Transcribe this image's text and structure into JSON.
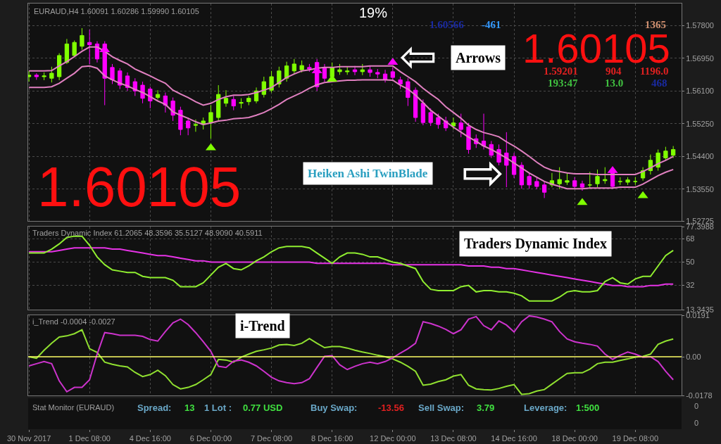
{
  "chart_data": [
    {
      "type": "candlestick",
      "categories": [
        null,
        null,
        null,
        null,
        null,
        null,
        null,
        null,
        null,
        null,
        null,
        null,
        null,
        null,
        null,
        null,
        null,
        null,
        null,
        null,
        null,
        null,
        null,
        null,
        null,
        null,
        null,
        null,
        null,
        null,
        null,
        null,
        null,
        null,
        null,
        null,
        null,
        null,
        null,
        null,
        null,
        null,
        null,
        null,
        null,
        null,
        null,
        null,
        null,
        null,
        null,
        null,
        null,
        null,
        null,
        null,
        null,
        null,
        null,
        null,
        null,
        null,
        null,
        null,
        null,
        null,
        null,
        null,
        null,
        null,
        null,
        null,
        null,
        null,
        null,
        null,
        null,
        null,
        null,
        null,
        null,
        null,
        null,
        null,
        null,
        null
      ],
      "ohlc": [
        [
          1.5647,
          1.5662,
          1.5634,
          1.5651
        ],
        [
          1.5651,
          1.5656,
          1.5639,
          1.5647
        ],
        [
          1.5647,
          1.5658,
          1.5638,
          1.5649
        ],
        [
          1.5643,
          1.5673,
          1.5632,
          1.5656
        ],
        [
          1.5647,
          1.5708,
          1.5638,
          1.5702
        ],
        [
          1.5684,
          1.5745,
          1.568,
          1.5732
        ],
        [
          1.5702,
          1.5741,
          1.5699,
          1.5736
        ],
        [
          1.5726,
          1.5773,
          1.5717,
          1.5754
        ],
        [
          1.5736,
          1.5769,
          1.568,
          1.573
        ],
        [
          1.5732,
          1.5739,
          1.5684,
          1.5693
        ],
        [
          1.5732,
          1.5739,
          1.5573,
          1.5643
        ],
        [
          1.5671,
          1.568,
          1.5628,
          1.5639
        ],
        [
          1.5662,
          1.5669,
          1.5615,
          1.5625
        ],
        [
          1.5649,
          1.5658,
          1.561,
          1.5619
        ],
        [
          1.5634,
          1.5643,
          1.5597,
          1.561
        ],
        [
          1.5625,
          1.5634,
          1.5578,
          1.5591
        ],
        [
          1.5615,
          1.5621,
          1.5565,
          1.5584
        ],
        [
          1.5593,
          1.5612,
          1.5588,
          1.5601
        ],
        [
          1.5597,
          1.5606,
          1.5554,
          1.5573
        ],
        [
          1.5584,
          1.5593,
          1.5532,
          1.5547
        ],
        [
          1.556,
          1.5569,
          1.5495,
          1.551
        ],
        [
          1.5532,
          1.5541,
          1.5495,
          1.5514
        ],
        [
          1.5523,
          1.5536,
          1.5504,
          1.5521
        ],
        [
          1.5523,
          1.5541,
          1.551,
          1.5532
        ],
        [
          1.5528,
          1.5573,
          1.5486,
          1.5554
        ],
        [
          1.5541,
          1.5625,
          1.5532,
          1.5601
        ],
        [
          1.5578,
          1.5612,
          1.5569,
          1.5591
        ],
        [
          1.5588,
          1.5597,
          1.556,
          1.5571
        ],
        [
          1.5578,
          1.5591,
          1.5565,
          1.558
        ],
        [
          1.5582,
          1.5597,
          1.5573,
          1.5591
        ],
        [
          1.5584,
          1.5619,
          1.5578,
          1.561
        ],
        [
          1.5601,
          1.5647,
          1.5593,
          1.5634
        ],
        [
          1.5612,
          1.5662,
          1.5606,
          1.5647
        ],
        [
          1.5628,
          1.5673,
          1.5619,
          1.5662
        ],
        [
          1.5643,
          1.5686,
          1.5634,
          1.5675
        ],
        [
          1.5662,
          1.5693,
          1.5654,
          1.568
        ],
        [
          1.5665,
          1.5689,
          1.5658,
          1.5676
        ],
        [
          1.5671,
          1.568,
          1.566,
          1.5667
        ],
        [
          1.5684,
          1.5693,
          1.561,
          1.5621
        ],
        [
          1.5671,
          1.568,
          1.5634,
          1.5643
        ],
        [
          1.5647,
          1.5684,
          1.564,
          1.5671
        ],
        [
          1.566,
          1.568,
          1.5652,
          1.5665
        ],
        [
          1.5662,
          1.5673,
          1.5652,
          1.566
        ],
        [
          1.5665,
          1.5675,
          1.5651,
          1.566
        ],
        [
          1.566,
          1.568,
          1.5651,
          1.5665
        ],
        [
          1.5665,
          1.5676,
          1.5647,
          1.5658
        ],
        [
          1.5658,
          1.5667,
          1.5643,
          1.5654
        ],
        [
          1.5654,
          1.5665,
          1.5632,
          1.5639
        ],
        [
          1.566,
          1.5671,
          1.5636,
          1.5645
        ],
        [
          1.5639,
          1.5647,
          1.5615,
          1.5628
        ],
        [
          1.5634,
          1.5643,
          1.5571,
          1.5593
        ],
        [
          1.5612,
          1.5619,
          1.553,
          1.5541
        ],
        [
          1.5578,
          1.5588,
          1.5521,
          1.5528
        ],
        [
          1.5554,
          1.5565,
          1.5519,
          1.5528
        ],
        [
          1.5541,
          1.5551,
          1.5512,
          1.5523
        ],
        [
          1.5532,
          1.5543,
          1.5506,
          1.5514
        ],
        [
          1.5519,
          1.5541,
          1.551,
          1.5527
        ],
        [
          1.5527,
          1.5551,
          1.549,
          1.551
        ],
        [
          1.5517,
          1.5527,
          1.5447,
          1.5458
        ],
        [
          1.5486,
          1.5497,
          1.5462,
          1.5473
        ],
        [
          1.548,
          1.5551,
          1.5458,
          1.5467
        ],
        [
          1.5471,
          1.548,
          1.5436,
          1.5443
        ],
        [
          1.5458,
          1.5471,
          1.5417,
          1.5425
        ],
        [
          1.5449,
          1.5503,
          1.536,
          1.5417
        ],
        [
          1.544,
          1.5449,
          1.5384,
          1.5393
        ],
        [
          1.5417,
          1.5425,
          1.5356,
          1.5366
        ],
        [
          1.5388,
          1.5397,
          1.5356,
          1.5366
        ],
        [
          1.5375,
          1.5384,
          1.5355,
          1.5362
        ],
        [
          1.5366,
          1.5375,
          1.5332,
          1.5347
        ],
        [
          1.5366,
          1.5397,
          1.536,
          1.5377
        ],
        [
          1.5369,
          1.5412,
          1.5355,
          1.538
        ],
        [
          1.5373,
          1.5397,
          1.5366,
          1.5377
        ],
        [
          1.5377,
          1.5386,
          1.5355,
          1.5362
        ],
        [
          1.5369,
          1.5377,
          1.5351,
          1.536
        ],
        [
          1.5366,
          1.54,
          1.5356,
          1.5366
        ],
        [
          1.5369,
          1.5406,
          1.536,
          1.5388
        ],
        [
          1.5377,
          1.5412,
          1.5369,
          1.538
        ],
        [
          1.5403,
          1.5412,
          1.5356,
          1.5362
        ],
        [
          1.5375,
          1.5386,
          1.5366,
          1.5375
        ],
        [
          1.5373,
          1.5386,
          1.5366,
          1.5379
        ],
        [
          1.5375,
          1.5386,
          1.5366,
          1.5375
        ],
        [
          1.5384,
          1.5412,
          1.5377,
          1.5403
        ],
        [
          1.5403,
          1.5445,
          1.5393,
          1.543
        ],
        [
          1.5412,
          1.5458,
          1.5403,
          1.5449
        ],
        [
          1.5436,
          1.5465,
          1.543,
          1.5454
        ],
        [
          1.5443,
          1.5467,
          1.5436,
          1.5458
        ]
      ],
      "colors": [
        "#80ff00",
        "#ff00ff",
        "#80ff00",
        "#80ff00",
        "#80ff00",
        "#80ff00",
        "#80ff00",
        "#80ff00",
        "#ff00ff",
        "#ff00ff",
        "#ff00ff",
        "#ff00ff",
        "#ff00ff",
        "#ff00ff",
        "#ff00ff",
        "#ff00ff",
        "#ff00ff",
        "#80ff00",
        "#ff00ff",
        "#ff00ff",
        "#ff00ff",
        "#ff00ff",
        "#80ff00",
        "#80ff00",
        "#80ff00",
        "#80ff00",
        "#80ff00",
        "#ff00ff",
        "#80ff00",
        "#80ff00",
        "#80ff00",
        "#80ff00",
        "#80ff00",
        "#80ff00",
        "#80ff00",
        "#80ff00",
        "#80ff00",
        "#ff00ff",
        "#ff00ff",
        "#ff00ff",
        "#80ff00",
        "#80ff00",
        "#80ff00",
        "#ff00ff",
        "#80ff00",
        "#ff00ff",
        "#ff00ff",
        "#ff00ff",
        "#ff00ff",
        "#ff00ff",
        "#ff00ff",
        "#ff00ff",
        "#ff00ff",
        "#ff00ff",
        "#ff00ff",
        "#ff00ff",
        "#80ff00",
        "#ff00ff",
        "#ff00ff",
        "#ff00ff",
        "#ff00ff",
        "#ff00ff",
        "#ff00ff",
        "#ff00ff",
        "#ff00ff",
        "#ff00ff",
        "#ff00ff",
        "#ff00ff",
        "#ff00ff",
        "#80ff00",
        "#80ff00",
        "#80ff00",
        "#ff00ff",
        "#ff00ff",
        "#80ff00",
        "#80ff00",
        "#80ff00",
        "#ff00ff",
        "#80ff00",
        "#80ff00",
        "#80ff00",
        "#80ff00",
        "#80ff00",
        "#80ff00",
        "#80ff00",
        "#80ff00"
      ],
      "series": [
        {
          "type": "line",
          "color": "#e080c0",
          "values": [
            1.5662,
            1.5662,
            1.5662,
            1.5663,
            1.5675,
            1.5686,
            1.5699,
            1.5713,
            1.5724,
            1.5724,
            1.5713,
            1.5699,
            1.5689,
            1.568,
            1.5667,
            1.5658,
            1.5649,
            1.5639,
            1.563,
            1.5612,
            1.5602,
            1.5593,
            1.5582,
            1.5573,
            1.5578,
            1.5588,
            1.5595,
            1.5599,
            1.5599,
            1.5601,
            1.5606,
            1.5612,
            1.5619,
            1.5632,
            1.5645,
            1.5654,
            1.5662,
            1.5665,
            1.5669,
            1.5671,
            1.5671,
            1.5673,
            1.5673,
            1.5673,
            1.5673,
            1.5675,
            1.5675,
            1.5675,
            1.5675,
            1.566,
            1.5647,
            1.5634,
            1.5617,
            1.5602,
            1.5588,
            1.5569,
            1.5554,
            1.5539,
            1.5521,
            1.551,
            1.5502,
            1.5497,
            1.5491,
            1.5478,
            1.5467,
            1.5454,
            1.544,
            1.5425,
            1.5412,
            1.5404,
            1.5401,
            1.5397,
            1.5395,
            1.5395,
            1.5395,
            1.5393,
            1.5393,
            1.5393,
            1.5393,
            1.5393,
            1.5393,
            1.5401,
            1.541,
            1.5421,
            1.543,
            1.544
          ]
        },
        {
          "type": "line",
          "color": "#e080c0",
          "values": [
            1.5619,
            1.5619,
            1.5619,
            1.5621,
            1.563,
            1.5643,
            1.5656,
            1.5673,
            1.5675,
            1.5669,
            1.5649,
            1.5639,
            1.563,
            1.5623,
            1.5614,
            1.5606,
            1.5595,
            1.5584,
            1.5575,
            1.5556,
            1.5547,
            1.5539,
            1.553,
            1.5523,
            1.5527,
            1.5532,
            1.5534,
            1.5538,
            1.5539,
            1.5541,
            1.5547,
            1.5554,
            1.5564,
            1.5575,
            1.5588,
            1.5597,
            1.5606,
            1.5617,
            1.5626,
            1.5632,
            1.5634,
            1.5636,
            1.5638,
            1.5638,
            1.5639,
            1.5639,
            1.5639,
            1.5639,
            1.5638,
            1.5625,
            1.5615,
            1.5599,
            1.558,
            1.556,
            1.5545,
            1.553,
            1.5516,
            1.5503,
            1.549,
            1.5479,
            1.5467,
            1.5458,
            1.5447,
            1.5436,
            1.5423,
            1.541,
            1.5397,
            1.5386,
            1.5375,
            1.5368,
            1.5362,
            1.5356,
            1.5356,
            1.5356,
            1.5358,
            1.5358,
            1.5358,
            1.5358,
            1.536,
            1.536,
            1.536,
            1.5368,
            1.5379,
            1.539,
            1.5399,
            1.5406
          ]
        },
        {
          "type": "scatter",
          "marker": "triangle",
          "color": "#80ff00",
          "values": [
            null,
            null,
            null,
            null,
            null,
            null,
            null,
            null,
            null,
            null,
            null,
            null,
            null,
            null,
            null,
            null,
            null,
            null,
            null,
            null,
            null,
            null,
            null,
            null,
            1.5462,
            null,
            null,
            null,
            null,
            null,
            null,
            null,
            null,
            null,
            null,
            null,
            null,
            null,
            null,
            null,
            1.564,
            null,
            null,
            null,
            null,
            null,
            null,
            null,
            null,
            null,
            null,
            null,
            null,
            null,
            null,
            null,
            null,
            null,
            null,
            null,
            null,
            null,
            null,
            null,
            null,
            null,
            null,
            null,
            null,
            null,
            null,
            null,
            null,
            1.532,
            null,
            null,
            null,
            null,
            null,
            null,
            null,
            1.5338,
            null,
            null,
            null,
            null
          ]
        },
        {
          "type": "scatter",
          "marker": "triangle",
          "color": "#ff00ff",
          "values": [
            null,
            null,
            null,
            null,
            null,
            null,
            null,
            null,
            null,
            null,
            1.5717,
            null,
            null,
            null,
            null,
            null,
            null,
            null,
            null,
            null,
            null,
            null,
            null,
            null,
            null,
            null,
            null,
            null,
            null,
            null,
            null,
            null,
            null,
            null,
            null,
            null,
            null,
            null,
            1.5662,
            null,
            null,
            null,
            null,
            null,
            null,
            null,
            null,
            null,
            1.5684,
            null,
            null,
            null,
            null,
            null,
            null,
            null,
            null,
            null,
            null,
            null,
            null,
            null,
            null,
            null,
            null,
            null,
            null,
            null,
            null,
            null,
            null,
            null,
            null,
            null,
            null,
            null,
            null,
            1.5403,
            null,
            null,
            null,
            null,
            null,
            null,
            null,
            null
          ]
        }
      ],
      "ylim": [
        1.52725,
        1.5837
      ],
      "yticks": [
        {
          "value": 1.578,
          "label": "1.57800"
        },
        {
          "value": 1.5695,
          "label": "1.56950"
        },
        {
          "value": 1.561,
          "label": "1.56100"
        },
        {
          "value": 1.5525,
          "label": "1.55250"
        },
        {
          "value": 1.544,
          "label": "1.54400"
        },
        {
          "value": 1.5355,
          "label": "1.53550"
        },
        {
          "value": 1.52725,
          "label": "1.52725"
        }
      ],
      "grid": true,
      "tick_labels": "y",
      "annotations": [
        "EURAUD,H4 1.60091 1.60286 1.59990 1.60105",
        "19%",
        "1.60566",
        "-461",
        "1365",
        "1.60105",
        "1.59201",
        "904",
        "1196.0",
        "193:47",
        "13.0",
        "468",
        "Arrows",
        "Heiken Ashi TwinBlade",
        "1.60105",
        "⇦",
        "⇨"
      ]
    },
    {
      "type": "line",
      "categories": [
        null,
        null,
        null,
        null,
        null,
        null,
        null,
        null,
        null,
        null,
        null,
        null,
        null,
        null,
        null,
        null,
        null,
        null,
        null,
        null,
        null,
        null,
        null,
        null,
        null,
        null,
        null,
        null,
        null,
        null,
        null,
        null,
        null,
        null,
        null,
        null,
        null,
        null,
        null,
        null,
        null,
        null,
        null,
        null,
        null,
        null,
        null,
        null,
        null,
        null,
        null,
        null,
        null,
        null,
        null,
        null,
        null,
        null,
        null,
        null,
        null,
        null,
        null,
        null,
        null,
        null,
        null,
        null,
        null,
        null,
        null,
        null,
        null,
        null,
        null,
        null,
        null,
        null,
        null,
        null,
        null,
        null,
        null,
        null,
        null,
        null
      ],
      "series": [
        {
          "color": "#e633e6",
          "values": [
            58,
            58,
            58,
            58,
            59,
            60,
            61,
            61,
            61,
            61,
            61,
            60,
            60,
            59,
            58,
            57,
            56,
            55,
            55,
            54,
            53,
            52,
            51,
            51,
            50,
            50,
            50,
            50,
            50,
            50,
            50,
            50,
            50,
            50,
            50,
            50,
            50,
            50,
            49,
            49,
            49,
            49,
            49,
            49,
            49,
            49,
            49,
            49,
            48,
            48,
            48,
            48,
            48,
            48,
            48,
            48,
            48,
            48,
            47,
            47,
            47,
            46,
            46,
            45,
            45,
            44,
            43,
            42,
            41,
            40,
            39,
            38,
            37,
            36,
            35,
            34,
            33,
            32,
            32,
            31,
            31,
            31,
            32,
            32,
            33,
            33
          ]
        },
        {
          "color": "#90ee30",
          "values": [
            57,
            57,
            57,
            60,
            64,
            69,
            70,
            70,
            63,
            54,
            48,
            44,
            43,
            42,
            42,
            39,
            38,
            38,
            38,
            36,
            31,
            31,
            31,
            34,
            40,
            46,
            49,
            45,
            44,
            47,
            51,
            54,
            58,
            61,
            62,
            62,
            62,
            61,
            57,
            53,
            49,
            54,
            57,
            57,
            56,
            54,
            54,
            52,
            50,
            49,
            47,
            45,
            35,
            29,
            28,
            28,
            28,
            31,
            32,
            27,
            28,
            28,
            27,
            27,
            26,
            24,
            20,
            20,
            20,
            20,
            23,
            27,
            28,
            27,
            27,
            28,
            35,
            38,
            34,
            33,
            37,
            39,
            39,
            47,
            55,
            59
          ]
        }
      ],
      "ylim": [
        13.3435,
        77.3988
      ],
      "yticks": [
        77.3988,
        68,
        50,
        32,
        13.3435
      ],
      "grid": true,
      "tick_labels": "y",
      "annotations": [
        "Traders Dynamic Index 61.2065 48.3596 35.5127 48.9090 40.5911",
        "Traders Dynamic Index"
      ]
    },
    {
      "type": "line",
      "categories": [
        null,
        null,
        null,
        null,
        null,
        null,
        null,
        null,
        null,
        null,
        null,
        null,
        null,
        null,
        null,
        null,
        null,
        null,
        null,
        null,
        null,
        null,
        null,
        null,
        null,
        null,
        null,
        null,
        null,
        null,
        null,
        null,
        null,
        null,
        null,
        null,
        null,
        null,
        null,
        null,
        null,
        null,
        null,
        null,
        null,
        null,
        null,
        null,
        null,
        null,
        null,
        null,
        null,
        null,
        null,
        null,
        null,
        null,
        null,
        null,
        null,
        null,
        null,
        null,
        null,
        null,
        null,
        null,
        null,
        null,
        null,
        null,
        null,
        null,
        null,
        null,
        null,
        null,
        null,
        null,
        null,
        null,
        null,
        null,
        null,
        null
      ],
      "series": [
        {
          "color": "#90e030",
          "values": [
            0.0,
            -0.0007,
            0.003,
            0.0062,
            0.0091,
            0.0096,
            0.0106,
            0.0124,
            0.0037,
            0.002,
            -0.0025,
            -0.0035,
            -0.0042,
            -0.0047,
            -0.0072,
            -0.0091,
            -0.0082,
            -0.0062,
            -0.0087,
            -0.0128,
            -0.0148,
            -0.0141,
            -0.0128,
            -0.0106,
            -0.0082,
            -0.0012,
            -0.0015,
            -0.0025,
            -0.0002,
            0.0012,
            0.0025,
            0.0032,
            0.004,
            0.0054,
            0.0057,
            0.0052,
            0.0062,
            0.0084,
            0.0062,
            0.0042,
            0.0047,
            0.0047,
            0.004,
            0.003,
            0.0022,
            0.0015,
            0.0007,
            0.0,
            -0.001,
            -0.0025,
            -0.0044,
            -0.0067,
            -0.0131,
            -0.0126,
            -0.0114,
            -0.0106,
            -0.0089,
            -0.0082,
            -0.0131,
            -0.0148,
            -0.0151,
            -0.0153,
            -0.0146,
            -0.0136,
            -0.0128,
            -0.0173,
            -0.017,
            -0.0158,
            -0.0151,
            -0.0126,
            -0.0101,
            -0.0077,
            -0.0074,
            -0.0074,
            -0.0057,
            -0.0032,
            -0.0025,
            -0.0025,
            -0.0017,
            -0.001,
            -0.0002,
            0.0002,
            0.0012,
            0.0057,
            0.0072,
            0.0082
          ]
        },
        {
          "color": "#cc33cc",
          "values": [
            -0.0042,
            -0.0032,
            -0.0022,
            -0.0032,
            -0.0111,
            -0.0161,
            -0.0141,
            -0.0141,
            -0.0106,
            0.0012,
            0.0111,
            0.0106,
            0.0099,
            0.0099,
            0.0099,
            0.0094,
            0.0079,
            0.0072,
            0.0116,
            0.0156,
            0.0173,
            0.0148,
            0.0111,
            0.0069,
            0.0025,
            -0.0044,
            -0.0049,
            -0.002,
            -0.0015,
            -0.0025,
            -0.0042,
            -0.0067,
            -0.0094,
            -0.0111,
            -0.0119,
            -0.0124,
            -0.0119,
            -0.0101,
            -0.0049,
            0.0002,
            0.0005,
            -0.0037,
            -0.0059,
            -0.0044,
            -0.0032,
            -0.0025,
            -0.0032,
            -0.0022,
            -0.0005,
            0.0017,
            0.0037,
            0.0062,
            0.0161,
            0.0153,
            0.0141,
            0.0126,
            0.0106,
            0.0124,
            0.0173,
            0.0185,
            0.0143,
            0.0124,
            0.0165,
            0.0146,
            0.0114,
            0.0161,
            0.0188,
            0.0183,
            0.0173,
            0.0161,
            0.0116,
            0.0082,
            0.0069,
            0.0062,
            0.0057,
            0.0049,
            0.0012,
            -0.0012,
            0.0007,
            0.0022,
            0.0012,
            -0.0002,
            0.0,
            -0.0022,
            -0.0067,
            -0.0106
          ]
        }
      ],
      "ylim": [
        -0.0178,
        0.0191
      ],
      "yticks": [
        0.0191,
        {
          "value": 0,
          "label": "0.00"
        },
        -0.0178
      ],
      "ref_lines": [
        {
          "axis": "y",
          "value": 0,
          "color": "#ffff66"
        }
      ],
      "grid": "x",
      "tick_labels": "y",
      "annotations": [
        "i_Trend -0.0004 -0.0027",
        "i-Trend"
      ]
    },
    {
      "type": "other",
      "categories": [
        "30 Nov 2017",
        null,
        null,
        null,
        null,
        null,
        null,
        null,
        "1 Dec 08:00",
        null,
        null,
        null,
        null,
        null,
        null,
        null,
        "4 Dec 16:00",
        null,
        null,
        null,
        null,
        null,
        null,
        null,
        "6 Dec 00:00",
        null,
        null,
        null,
        null,
        null,
        null,
        null,
        "7 Dec 08:00",
        null,
        null,
        null,
        null,
        null,
        null,
        null,
        "8 Dec 16:00",
        null,
        null,
        null,
        null,
        null,
        null,
        null,
        "12 Dec 00:00",
        null,
        null,
        null,
        null,
        null,
        null,
        null,
        "13 Dec 08:00",
        null,
        null,
        null,
        null,
        null,
        null,
        null,
        "14 Dec 16:00",
        null,
        null,
        null,
        null,
        null,
        null,
        null,
        "18 Dec 00:00",
        null,
        null,
        null,
        null,
        null,
        null,
        null,
        "19 Dec 08:00",
        null,
        null,
        null,
        null,
        null
      ],
      "annotations": [
        "Stat Monitor (EURAUD)",
        "Spread:",
        "13",
        "1 Lot :",
        "0.77 USD",
        "Buy Swap:",
        "-13.56",
        "Sell Swap:",
        "3.79",
        "Leverage:",
        "1:500",
        "0",
        "0"
      ]
    }
  ]
}
